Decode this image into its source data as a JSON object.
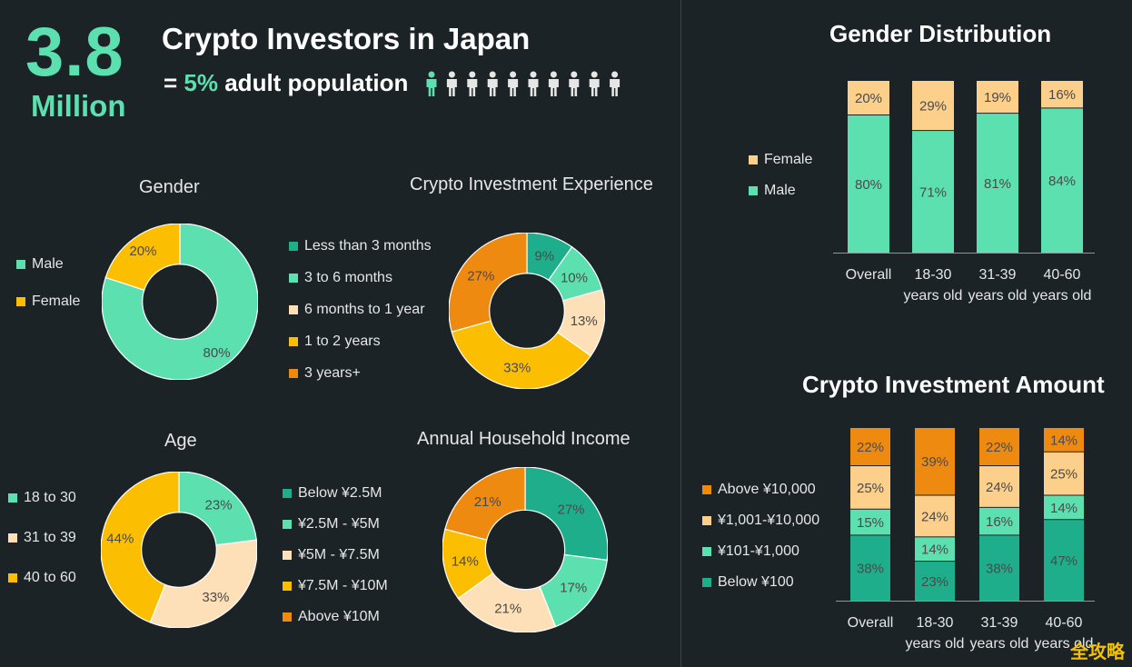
{
  "header": {
    "big_number": "3.8",
    "big_unit": "Million",
    "title": "Crypto Investors in Japan",
    "subtitle_prefix": "= ",
    "subtitle_highlight": "5%",
    "subtitle_suffix": " adult population",
    "people_total": 10,
    "people_highlighted": 1
  },
  "colors": {
    "teal_dark": "#1fae8c",
    "teal": "#5ce0b0",
    "peach": "#fde0b8",
    "yellow": "#fbbe00",
    "orange": "#ef8a10",
    "peach_bar": "#fcd08a"
  },
  "chart_data": [
    {
      "id": "gender",
      "type": "pie",
      "title": "Gender",
      "labels": [
        "Male",
        "Female"
      ],
      "values": [
        80,
        20
      ],
      "value_labels": [
        "80%",
        "20%"
      ],
      "colors": [
        "#5ce0b0",
        "#fbbe00"
      ]
    },
    {
      "id": "experience",
      "type": "pie",
      "title": "Crypto Investment Experience",
      "labels": [
        "Less than 3 months",
        "3 to 6 months",
        "6 months to 1 year",
        "1 to 2 years",
        "3 years+"
      ],
      "values": [
        9,
        10,
        13,
        33,
        27
      ],
      "value_labels": [
        "9%",
        "10%",
        "13%",
        "33%",
        "27%"
      ],
      "colors": [
        "#1fae8c",
        "#5ce0b0",
        "#fde0b8",
        "#fbbe00",
        "#ef8a10"
      ]
    },
    {
      "id": "age",
      "type": "pie",
      "title": "Age",
      "labels": [
        "18 to 30",
        "31 to 39",
        "40 to 60"
      ],
      "values": [
        23,
        33,
        44
      ],
      "value_labels": [
        "23%",
        "33%",
        "44%"
      ],
      "colors": [
        "#5ce0b0",
        "#fde0b8",
        "#fbbe00"
      ]
    },
    {
      "id": "income",
      "type": "pie",
      "title": "Annual Household Income",
      "labels": [
        "Below ¥2.5M",
        "¥2.5M - ¥5M",
        "¥5M - ¥7.5M",
        "¥7.5M - ¥10M",
        "Above ¥10M"
      ],
      "values": [
        27,
        17,
        21,
        14,
        21
      ],
      "value_labels": [
        "27%",
        "17%",
        "21%",
        "14%",
        "21%"
      ],
      "colors": [
        "#1fae8c",
        "#5ce0b0",
        "#fde0b8",
        "#fbbe00",
        "#ef8a10"
      ]
    },
    {
      "id": "gender_dist",
      "type": "bar",
      "stacked": true,
      "title": "Gender Distribution",
      "categories": [
        "Overall",
        "18-30",
        "31-39",
        "40-60"
      ],
      "category_sublabels": [
        "",
        "years old",
        "years old",
        "years old"
      ],
      "series": [
        {
          "name": "Male",
          "values": [
            80,
            71,
            81,
            84
          ],
          "color": "#5ce0b0"
        },
        {
          "name": "Female",
          "values": [
            20,
            29,
            19,
            16
          ],
          "color": "#fcd08a"
        }
      ],
      "ylim": [
        0,
        100
      ]
    },
    {
      "id": "amount",
      "type": "bar",
      "stacked": true,
      "title": "Crypto Investment Amount",
      "categories": [
        "Overall",
        "18-30",
        "31-39",
        "40-60"
      ],
      "category_sublabels": [
        "",
        "years old",
        "years old",
        "years old"
      ],
      "series": [
        {
          "name": "Below ¥100",
          "values": [
            38,
            23,
            38,
            47
          ],
          "color": "#1fae8c"
        },
        {
          "name": "¥101-¥1,000",
          "values": [
            15,
            14,
            16,
            14
          ],
          "color": "#5ce0b0"
        },
        {
          "name": "¥1,001-¥10,000",
          "values": [
            25,
            24,
            24,
            25
          ],
          "color": "#fcd08a"
        },
        {
          "name": "Above ¥10,000",
          "values": [
            22,
            39,
            22,
            14
          ],
          "color": "#ef8a10"
        }
      ],
      "ylim": [
        0,
        100
      ]
    }
  ],
  "watermark": "全攻略"
}
